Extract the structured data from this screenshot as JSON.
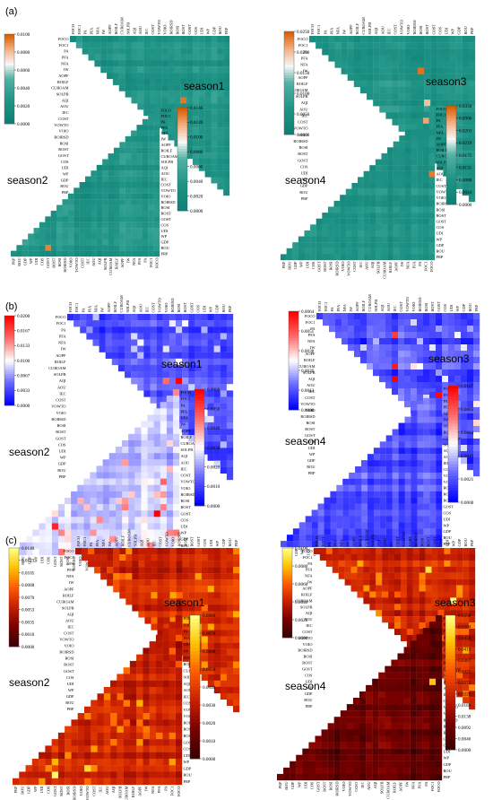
{
  "chart_data": {
    "type": "heatmap",
    "variables": [
      "FOCO",
      "FOC1",
      "PA",
      "PFA",
      "NFA",
      "IW",
      "AOPF",
      "ROILF",
      "CUROAM",
      "SOLPB",
      "AQI",
      "AOU",
      "IEC",
      "COST",
      "VOWTO",
      "VOIO",
      "ROIRSD",
      "ROSI",
      "ROST",
      "GOST",
      "COS",
      "UDI",
      "WP",
      "GDP",
      "ROU",
      "PRP"
    ],
    "panels": [
      {
        "label": "(a)",
        "colormap": "teal-orange",
        "seasons": [
          {
            "name": "season1",
            "ticks": [
              "0.0100",
              "0.0080",
              "0.0060",
              "0.0040",
              "0.0020",
              "0.0000"
            ],
            "vmax": 0.01,
            "hotspots": [
              {
                "row": "AQI",
                "col": "ROST",
                "value": 0.0095
              },
              {
                "row": "COS",
                "col": "ROST",
                "value": 0.0045
              }
            ]
          },
          {
            "name": "season2",
            "ticks": [
              "0.0140",
              "0.0120",
              "0.0100",
              "0.0080",
              "0.0060",
              "0.0040",
              "0.0020",
              "0.0000"
            ],
            "vmax": 0.014,
            "hotspots": [
              {
                "row": "ROU",
                "col": "GOST",
                "value": 0.013
              }
            ]
          },
          {
            "name": "season3",
            "ticks": [
              "0.0250",
              "0.0200",
              "0.0150",
              "0.0100",
              "0.0050",
              "0.0000"
            ],
            "vmax": 0.025,
            "hotspots": [
              {
                "row": "IW",
                "col": "ROSI",
                "value": 0.024
              },
              {
                "row": "IW",
                "col": "NFA",
                "value": 0.022
              },
              {
                "row": "AQI",
                "col": "ROST",
                "value": 0.02
              }
            ]
          },
          {
            "name": "season4",
            "ticks": [
              "0.0350",
              "0.0306",
              "0.0263",
              "0.0219",
              "0.0175",
              "0.0131",
              "0.0088",
              "0.0044",
              "0.0000"
            ],
            "vmax": 0.035,
            "hotspots": [
              {
                "row": "PA",
                "col": "FOC1",
                "value": 0.03
              },
              {
                "row": "AOU",
                "col": "FOCO",
                "value": 0.033
              }
            ]
          }
        ]
      },
      {
        "label": "(b)",
        "colormap": "blue-white-red",
        "seasons": [
          {
            "name": "season1",
            "ticks": [
              "0.0200",
              "0.0167",
              "0.0133",
              "0.0100",
              "0.0067",
              "0.0033",
              "0.0000"
            ],
            "vmax": 0.02,
            "hotspots": [
              {
                "row": "AQI",
                "col": "ROSI",
                "value": 0.02
              },
              {
                "row": "AQI",
                "col": "VOIO",
                "value": 0.015
              }
            ]
          },
          {
            "name": "season2",
            "ticks": [
              "0.0060",
              "0.0050",
              "0.0040",
              "0.0030",
              "0.0020",
              "0.0010",
              "0.0000"
            ],
            "vmax": 0.006,
            "hotspots": [
              {
                "row": "GOST",
                "col": "PFA",
                "value": 0.006
              },
              {
                "row": "UDI",
                "col": "GOST",
                "value": 0.0055
              },
              {
                "row": "COS",
                "col": "ROU",
                "value": 0.005
              }
            ]
          },
          {
            "name": "season3",
            "ticks": [
              "0.0064",
              "0.0051",
              "0.0038",
              "0.0026",
              "0.0013",
              "0.0000"
            ],
            "vmax": 0.0064,
            "hotspots": [
              {
                "row": "AQI",
                "col": "IEC",
                "value": 0.0064
              },
              {
                "row": "CUROAM",
                "col": "IEC",
                "value": 0.006
              },
              {
                "row": "PFA",
                "col": "IEC",
                "value": 0.0055
              }
            ]
          },
          {
            "name": "season4",
            "ticks": [
              "0.0107",
              "0.0085",
              "0.0064",
              "0.0043",
              "0.0021",
              "0.0000"
            ],
            "vmax": 0.0107,
            "hotspots": [
              {
                "row": "FOC1",
                "col": "FOCO",
                "value": 0.0105
              }
            ]
          }
        ]
      },
      {
        "label": "(c)",
        "colormap": "dark-red-yellow",
        "seasons": [
          {
            "name": "season1",
            "ticks": [
              "0.0140",
              "0.0123",
              "0.0105",
              "0.0088",
              "0.0070",
              "0.0053",
              "0.0035",
              "0.0018",
              "0.0000"
            ],
            "vmax": 0.014,
            "hotspots": [
              {
                "row": "GOST",
                "col": "IEC",
                "value": 0.012
              },
              {
                "row": "AOU",
                "col": "ROSI",
                "value": 0.011
              }
            ]
          },
          {
            "name": "season2",
            "ticks": [
              "0.0080",
              "0.0070",
              "0.0060",
              "0.0050",
              "0.0040",
              "0.0030",
              "0.0020",
              "0.0010",
              "0.0000"
            ],
            "vmax": 0.008,
            "hotspots": [
              {
                "row": "ROU",
                "col": "GOST",
                "value": 0.0078
              },
              {
                "row": "GDP",
                "col": "VOWTO",
                "value": 0.007
              }
            ]
          },
          {
            "name": "season3",
            "ticks": [
              "0.0100",
              "0.0080",
              "0.0060",
              "0.0040",
              "0.0020",
              "0.0000"
            ],
            "vmax": 0.01,
            "hotspots": [
              {
                "row": "CUROAM",
                "col": "WP",
                "value": 0.01
              },
              {
                "row": "PFA",
                "col": "ROST",
                "value": 0.009
              }
            ]
          },
          {
            "name": "season4",
            "ticks": [
              "0.0550",
              "0.0504",
              "0.0458",
              "0.0413",
              "0.0367",
              "0.0321",
              "0.0275",
              "0.0229",
              "0.0183",
              "0.0138",
              "0.0092",
              "0.0046",
              "0.0000"
            ],
            "vmax": 0.055,
            "hotspots": [
              {
                "row": "AQI",
                "col": "FOC1",
                "value": 0.045
              }
            ]
          }
        ]
      }
    ],
    "colors": {
      "teal": [
        "#0e7f75",
        "#2a9d8f",
        "#7fc8b8",
        "#ffffff",
        "#f4b183",
        "#d95f02"
      ],
      "bwr": [
        "#0000ff",
        "#6a6aff",
        "#ffffff",
        "#ff6a6a",
        "#ff0000"
      ],
      "hot": [
        "#3a0000",
        "#7a0000",
        "#c81e00",
        "#ff5a00",
        "#ffc000",
        "#ffff80"
      ]
    }
  }
}
